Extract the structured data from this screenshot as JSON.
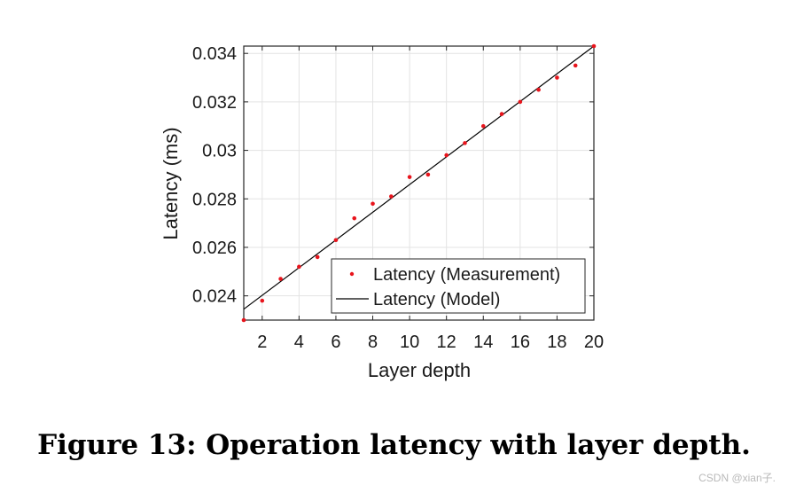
{
  "chart_data": {
    "type": "scatter",
    "title": "",
    "xlabel": "Layer depth",
    "ylabel": "Latency (ms)",
    "xlim": [
      1,
      20
    ],
    "ylim": [
      0.023,
      0.0343
    ],
    "xticks": [
      2,
      4,
      6,
      8,
      10,
      12,
      14,
      16,
      18,
      20
    ],
    "yticks": [
      0.024,
      0.026,
      0.028,
      0.03,
      0.032,
      0.034
    ],
    "ytick_labels": [
      "0.024",
      "0.026",
      "0.028",
      "0.03",
      "0.032",
      "0.034"
    ],
    "grid": true,
    "legend_position": "bottom-right",
    "colors": {
      "measurement": "#e8141c",
      "model": "#000000"
    },
    "series": [
      {
        "name": "Latency (Measurement)",
        "style": "points",
        "x": [
          1,
          2,
          3,
          4,
          5,
          6,
          7,
          8,
          9,
          10,
          11,
          12,
          13,
          14,
          15,
          16,
          17,
          18,
          19,
          20
        ],
        "y": [
          0.023,
          0.0238,
          0.0247,
          0.0252,
          0.0256,
          0.0263,
          0.0272,
          0.0278,
          0.0281,
          0.0289,
          0.029,
          0.0298,
          0.0303,
          0.031,
          0.0315,
          0.032,
          0.0325,
          0.033,
          0.0335,
          0.0343
        ]
      },
      {
        "name": "Latency (Model)",
        "style": "line",
        "x": [
          1,
          20
        ],
        "y": [
          0.02345,
          0.0343
        ]
      }
    ]
  },
  "caption": "Figure 13: Operation latency with layer depth.",
  "watermark": "CSDN @xian子."
}
